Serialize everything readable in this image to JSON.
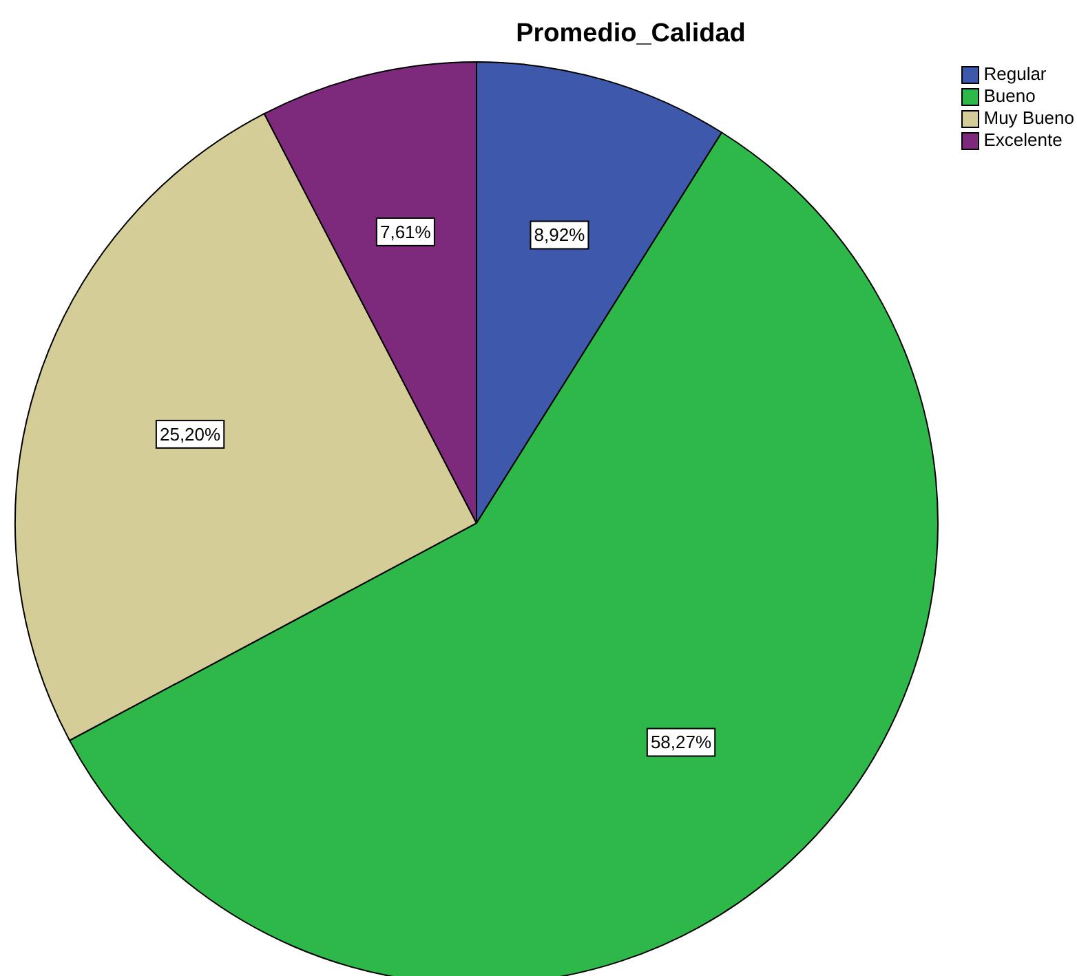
{
  "chart_data": {
    "type": "pie",
    "title": "Promedio_Calidad",
    "categories": [
      "Regular",
      "Bueno",
      "Muy Bueno",
      "Excelente"
    ],
    "values": [
      8.92,
      58.27,
      25.2,
      7.61
    ],
    "value_labels": [
      "8,92%",
      "58,27%",
      "25,20%",
      "7,61%"
    ],
    "colors": [
      "#3e58ac",
      "#2eb84a",
      "#d5cd97",
      "#7e2a7c"
    ],
    "legend": "top right"
  }
}
